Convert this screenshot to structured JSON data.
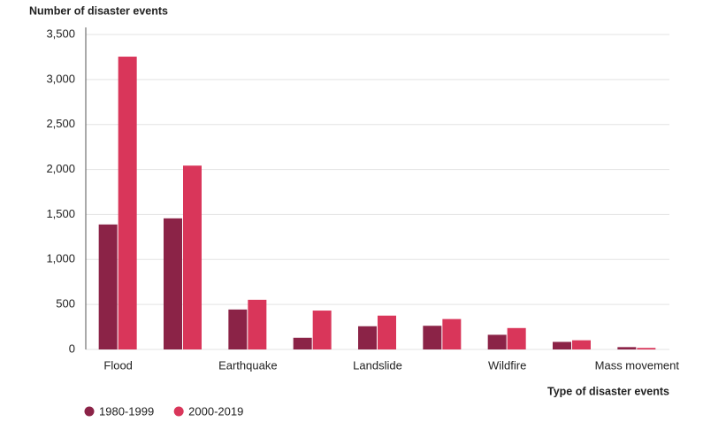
{
  "chart_data": {
    "type": "bar",
    "y_label": "Number of disaster events",
    "x_label": "Type of disaster events",
    "categories": [
      "Flood",
      null,
      "Earthquake",
      null,
      "Landslide",
      null,
      "Wildfire",
      null,
      "Mass movement"
    ],
    "series": [
      {
        "name": "1980-1999",
        "color": "#8b2347",
        "values": [
          1389,
          1457,
          444,
          130,
          258,
          263,
          163,
          84,
          26
        ]
      },
      {
        "name": "2000-2019",
        "color": "#d9365a",
        "values": [
          3254,
          2043,
          552,
          432,
          376,
          338,
          238,
          102,
          17
        ]
      }
    ],
    "ylim": [
      0,
      3500
    ],
    "yticks": [
      0,
      500,
      {
        "value": 1000,
        "label": "1,000"
      },
      {
        "value": 1500,
        "label": "1,500"
      },
      {
        "value": 2000,
        "label": "2,000"
      },
      {
        "value": 2500,
        "label": "2,500"
      },
      {
        "value": 3000,
        "label": "3,000"
      },
      {
        "value": 3500,
        "label": "3,500"
      }
    ],
    "grid": true
  }
}
